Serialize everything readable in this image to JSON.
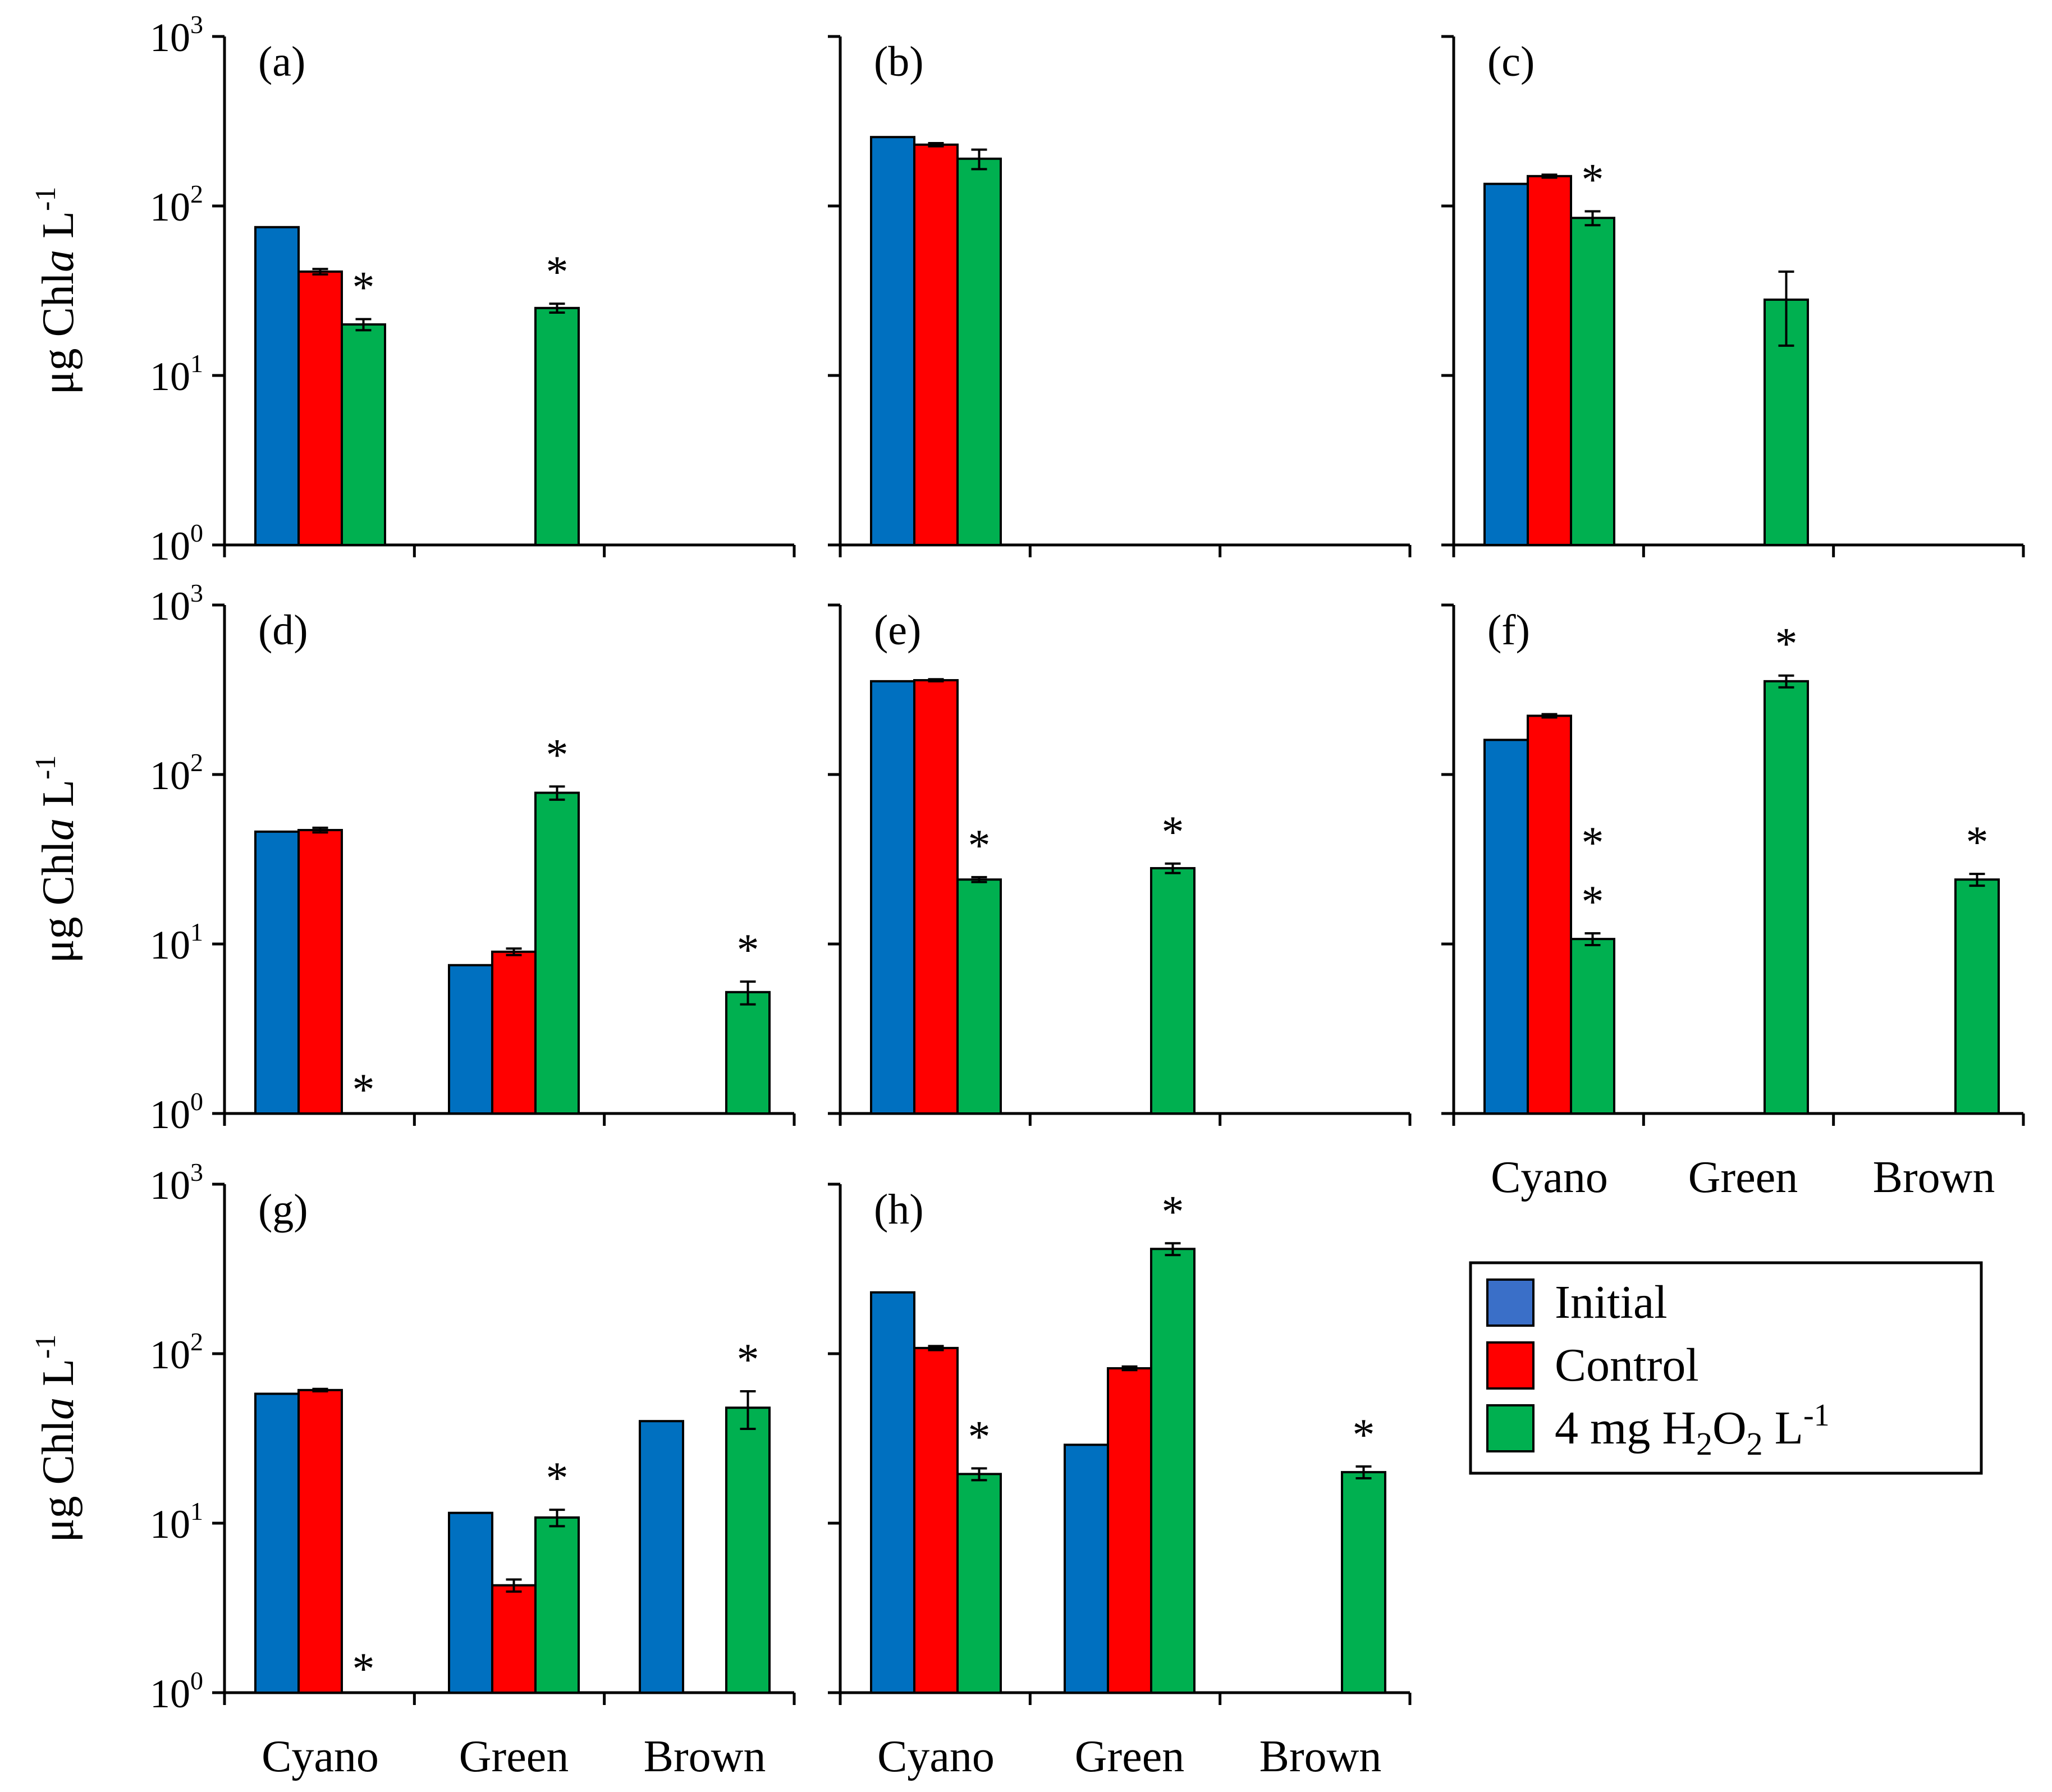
{
  "figure": {
    "y_label_main": "μg Chl",
    "y_label_italic": "a",
    "y_label_unit": " L",
    "y_label_sup": "-1"
  },
  "axis": {
    "scale": "log",
    "ylim": [
      1,
      1000
    ],
    "tick_bases": [
      "10",
      "10",
      "10",
      "10"
    ],
    "tick_exps": [
      "0",
      "1",
      "2",
      "3"
    ],
    "categories": [
      "Cyano",
      "Green",
      "Brown"
    ]
  },
  "legend": {
    "position": "bottom-right",
    "entries": [
      {
        "label": "Initial",
        "color": "#3a6fc8"
      },
      {
        "label": "Control",
        "color": "#ff0000"
      },
      {
        "label_parts": [
          "4 mg H",
          "2",
          "O",
          "2",
          " L",
          "-1"
        ],
        "color": "#00b050"
      }
    ]
  },
  "colors": {
    "initial": "#0070c0",
    "control": "#ff0000",
    "h2o2": "#00b050",
    "axis": "#000000"
  },
  "chart_data": [
    {
      "type": "bar",
      "panel": "(a)",
      "categories": [
        "Cyano",
        "Green",
        "Brown"
      ],
      "series": [
        {
          "name": "Initial",
          "values": [
            75,
            null,
            null
          ],
          "errors": [
            0,
            0,
            0
          ]
        },
        {
          "name": "Control",
          "values": [
            41,
            null,
            null
          ],
          "errors": [
            1.5,
            0,
            0
          ]
        },
        {
          "name": "4 mg H2O2 L-1",
          "values": [
            20,
            25,
            null
          ],
          "errors": [
            1.5,
            1.5,
            0
          ]
        }
      ],
      "stars": [
        [
          null,
          null,
          "*"
        ],
        [
          null,
          null,
          "*"
        ],
        [
          null,
          null,
          null
        ]
      ]
    },
    {
      "type": "bar",
      "panel": "(b)",
      "categories": [
        "Cyano",
        "Green",
        "Brown"
      ],
      "series": [
        {
          "name": "Initial",
          "values": [
            255,
            null,
            null
          ],
          "errors": [
            0,
            0,
            0
          ]
        },
        {
          "name": "Control",
          "values": [
            230,
            null,
            null
          ],
          "errors": [
            5,
            0,
            0
          ]
        },
        {
          "name": "4 mg H2O2 L-1",
          "values": [
            190,
            null,
            null
          ],
          "errors": [
            25,
            0,
            0
          ]
        }
      ],
      "stars": [
        [
          null,
          null,
          null
        ],
        [
          null,
          null,
          null
        ],
        [
          null,
          null,
          null
        ]
      ]
    },
    {
      "type": "bar",
      "panel": "(c)",
      "categories": [
        "Cyano",
        "Green",
        "Brown"
      ],
      "series": [
        {
          "name": "Initial",
          "values": [
            135,
            null,
            null
          ],
          "errors": [
            0,
            0,
            0
          ]
        },
        {
          "name": "Control",
          "values": [
            150,
            null,
            null
          ],
          "errors": [
            3,
            0,
            0
          ]
        },
        {
          "name": "4 mg H2O2 L-1",
          "values": [
            85,
            28,
            null
          ],
          "errors": [
            8,
            13,
            0
          ]
        }
      ],
      "stars": [
        [
          null,
          null,
          "*"
        ],
        [
          null,
          null,
          null
        ],
        [
          null,
          null,
          null
        ]
      ]
    },
    {
      "type": "bar",
      "panel": "(d)",
      "categories": [
        "Cyano",
        "Green",
        "Brown"
      ],
      "series": [
        {
          "name": "Initial",
          "values": [
            46,
            7.5,
            null
          ],
          "errors": [
            0,
            0,
            0
          ]
        },
        {
          "name": "Control",
          "values": [
            47,
            9,
            null
          ],
          "errors": [
            1.5,
            0.4,
            0
          ]
        },
        {
          "name": "4 mg H2O2 L-1",
          "values": [
            null,
            78,
            5.2
          ],
          "errors": [
            0,
            7,
            0.8
          ]
        }
      ],
      "stars": [
        [
          null,
          null,
          "*"
        ],
        [
          null,
          null,
          "*"
        ],
        [
          null,
          null,
          "*"
        ]
      ]
    },
    {
      "type": "bar",
      "panel": "(e)",
      "categories": [
        "Cyano",
        "Green",
        "Brown"
      ],
      "series": [
        {
          "name": "Initial",
          "values": [
            355,
            null,
            null
          ],
          "errors": [
            0,
            0,
            0
          ]
        },
        {
          "name": "Control",
          "values": [
            360,
            null,
            null
          ],
          "errors": [
            5,
            0,
            0
          ]
        },
        {
          "name": "4 mg H2O2 L-1",
          "values": [
            24,
            28,
            null
          ],
          "errors": [
            0.8,
            1.8,
            0
          ]
        }
      ],
      "stars": [
        [
          null,
          null,
          "*"
        ],
        [
          null,
          null,
          "*"
        ],
        [
          null,
          null,
          null
        ]
      ]
    },
    {
      "type": "bar",
      "panel": "(f)",
      "categories": [
        "Cyano",
        "Green",
        "Brown"
      ],
      "series": [
        {
          "name": "Initial",
          "values": [
            160,
            null,
            null
          ],
          "errors": [
            0,
            0,
            0
          ]
        },
        {
          "name": "Control",
          "values": [
            222,
            null,
            null
          ],
          "errors": [
            5,
            0,
            0
          ]
        },
        {
          "name": "4 mg H2O2 L-1",
          "values": [
            10.7,
            355,
            24
          ]
        }
      ],
      "stars": [
        [
          null,
          null,
          "**"
        ],
        [
          null,
          null,
          "*"
        ],
        [
          null,
          null,
          "*"
        ]
      ]
    },
    {
      "type": "bar",
      "panel": "(g)",
      "categories": [
        "Cyano",
        "Green",
        "Brown"
      ],
      "series": [
        {
          "name": "Initial",
          "values": [
            58,
            11.5,
            40
          ],
          "errors": [
            0,
            0,
            0
          ]
        },
        {
          "name": "Control",
          "values": [
            61,
            4.3,
            null
          ],
          "errors": [
            1,
            0.35,
            0
          ]
        },
        {
          "name": "4 mg H2O2 L-1",
          "values": [
            null,
            10.8,
            48
          ],
          "errors": [
            0,
            1.2,
            12
          ]
        }
      ],
      "stars": [
        [
          null,
          null,
          "*"
        ],
        [
          null,
          null,
          "*"
        ],
        [
          null,
          null,
          "*"
        ]
      ]
    },
    {
      "type": "bar",
      "panel": "(h)",
      "categories": [
        "Cyano",
        "Green",
        "Brown"
      ],
      "series": [
        {
          "name": "Initial",
          "values": [
            230,
            29,
            null
          ],
          "errors": [
            0,
            0,
            0
          ]
        },
        {
          "name": "Control",
          "values": [
            108,
            82,
            null
          ],
          "errors": [
            3,
            2,
            0
          ]
        },
        {
          "name": "4 mg H2O2 L-1",
          "values": [
            19.5,
            415,
            20
          ]
        }
      ],
      "stars": [
        [
          null,
          null,
          "*"
        ],
        [
          null,
          null,
          "*"
        ],
        [
          null,
          null,
          "*"
        ]
      ]
    }
  ]
}
